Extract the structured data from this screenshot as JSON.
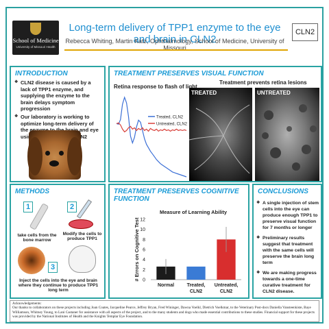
{
  "header": {
    "logo_line1": "School of Medicine",
    "logo_line2": "University of Missouri Health",
    "title": "Long-term delivery of TPP1 enzyme to the eye and brain in CLN2",
    "authors": "Rebecca Whiting, Martin Katz, Ophthalmology, School of Medicine, University of Missouri",
    "tag": "CLN2"
  },
  "introduction": {
    "heading": "INTRODUCTION",
    "bullets": [
      "CLN2 disease is caused by a lack of TPP1 enzyme, and supplying the enzyme to the brain delays symptom progression",
      "Our laboratory is working to optimize long-term delivery of the enzyme to the brain and eye using a dog model of CLN2"
    ]
  },
  "visual": {
    "heading": "TREATMENT PRESERVES VISUAL FUNCTION",
    "retina_title": "Retina response to flash of light",
    "lesions_title": "Treatment prevents retina lesions",
    "img_treated": "TREATED",
    "img_untreated": "UNTREATED"
  },
  "methods": {
    "heading": "METHODS",
    "steps": [
      {
        "num": "1",
        "caption": "take cells from the bone marrow"
      },
      {
        "num": "2",
        "caption": "Modify the cells to produce TPP1"
      },
      {
        "num": "3",
        "caption": "Inject the cells into the eye and brain where they continue to produce TPP1 long term"
      }
    ]
  },
  "cognitive": {
    "heading": "TREATMENT PRESERVES COGNITIVE FUNCTION"
  },
  "conclusions": {
    "heading": "CONCLUSIONS",
    "bullets": [
      "A single injection of stem cells into the eye can produce enough TPP1 to preserve visual function for 7 months or longer",
      "Preliminary results suggest that treatment with the same cells will preserve the brain long term",
      "We are making progress towards a one-time curative treatment for CLN2 disease."
    ]
  },
  "acknowledgements": {
    "heading": "Acknowledgements:",
    "text": "Our thanks to collaborators on these projects including Joan Coates, Jacqueline Pearce, Jeffrey Bryan, Fred Wininger, Dawna Voelkl, Dietrich Voelkmar, to the Veterinary Post-docs Daniella Vansteenkiste, Baye Williamson, Whitney Young, to Lani Castaner for assistance with all aspects of the project, and to the many students and dogs who made essential contributions to these studies. Financial support for these projects was provided by the National Institutes of Health and the Knights Templar Eye Foundation."
  },
  "chart_data": [
    {
      "type": "line",
      "title": "Retina response to flash of light",
      "series": [
        {
          "name": "Treated, CLN2",
          "color": "#3b6fd6",
          "x": [
            0,
            2,
            4,
            6,
            8,
            10,
            12,
            14,
            16,
            18,
            20,
            22,
            24,
            26,
            28,
            30,
            32,
            34,
            36,
            38,
            40,
            42,
            44,
            46,
            48,
            50,
            52,
            54,
            56,
            58,
            60,
            62,
            64,
            66,
            68,
            70
          ],
          "y": [
            0,
            -1,
            6,
            28,
            38,
            30,
            10,
            -18,
            -28,
            -20,
            -5,
            5,
            2,
            -10,
            -22,
            -30,
            -35,
            -40,
            -44,
            -48,
            -52,
            -55,
            -58,
            -60,
            -62,
            -64,
            -66,
            -68,
            -70,
            -71,
            -72,
            -73,
            -74,
            -75,
            -76,
            -77
          ]
        },
        {
          "name": "Untreated, CLN2",
          "color": "#d8403a",
          "x": [
            0,
            2,
            4,
            6,
            8,
            10,
            12,
            14,
            16,
            18,
            20,
            22,
            24,
            26,
            28,
            30,
            32,
            34,
            36,
            38,
            40,
            42,
            44,
            46,
            48,
            50,
            52,
            54,
            56,
            58,
            60,
            62,
            64,
            66,
            68,
            70
          ],
          "y": [
            0,
            1,
            -2,
            -8,
            -12,
            -10,
            -6,
            -4,
            -8,
            -6,
            -10,
            -7,
            -9,
            -6,
            -10,
            -8,
            -11,
            -7,
            -9,
            -10,
            -8,
            -11,
            -9,
            -10,
            -8,
            -10,
            -9,
            -11,
            -9,
            -10,
            -8,
            -10,
            -9,
            -10,
            -9,
            -10
          ]
        }
      ],
      "legend": "right"
    },
    {
      "type": "bar",
      "title": "Measure of Learning Ability",
      "categories": [
        "Normal",
        "Treated, CLN2",
        "Untreated, CLN2"
      ],
      "values": [
        2.6,
        2.6,
        8
      ],
      "errors": [
        1.5,
        0,
        2.5
      ],
      "ylabel": "# Errors on Cognitive Test",
      "ylim": [
        0,
        12
      ],
      "yticks": [
        0,
        2,
        4,
        6,
        8,
        10,
        12
      ],
      "colors": [
        "#1b1b1b",
        "#3a7bd5",
        "#d82e2e"
      ]
    }
  ]
}
